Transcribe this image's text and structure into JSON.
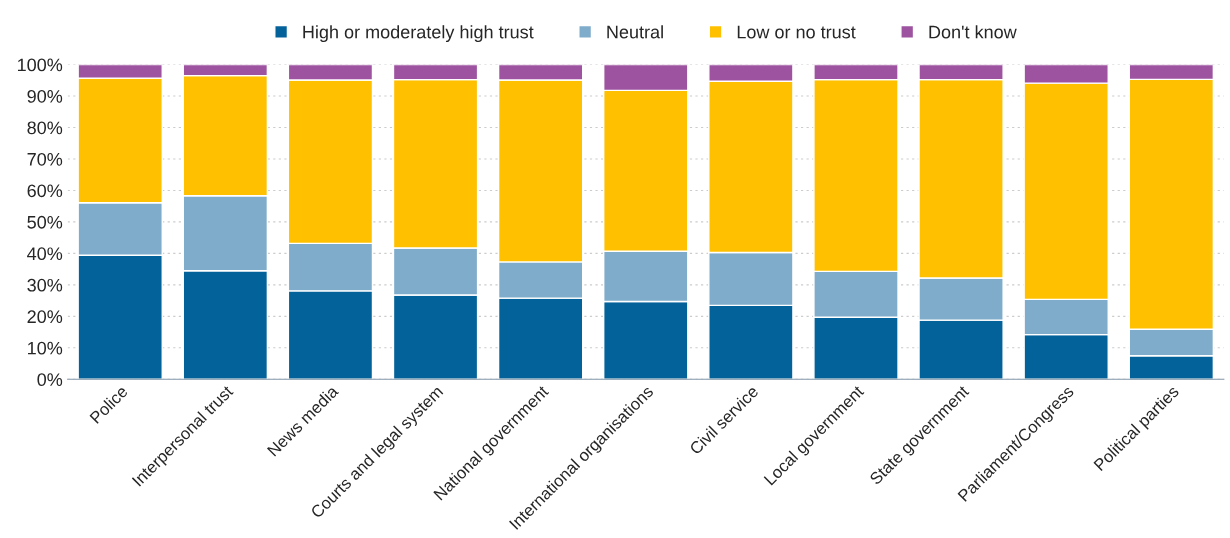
{
  "chart_data": {
    "type": "bar",
    "stacked": true,
    "categories": [
      "Police",
      "Interpersonal trust",
      "News media",
      "Courts and legal system",
      "National government",
      "International organisations",
      "Civil service",
      "Local government",
      "State government",
      "Parliament/Congress",
      "Political parties"
    ],
    "series": [
      {
        "name": "High or moderately high trust",
        "color": "#04629b",
        "values": [
          39.4,
          34.5,
          28.1,
          26.8,
          25.8,
          24.7,
          23.5,
          19.7,
          18.8,
          14.2,
          7.5
        ]
      },
      {
        "name": "Neutral",
        "color": "#7facca",
        "values": [
          16.7,
          23.8,
          15.1,
          14.9,
          11.5,
          16.0,
          16.8,
          14.6,
          13.4,
          11.2,
          8.4
        ]
      },
      {
        "name": "Low or no trust",
        "color": "#ffc000",
        "values": [
          39.6,
          38.2,
          51.9,
          53.5,
          57.8,
          51.1,
          54.4,
          60.9,
          63.0,
          68.7,
          79.4
        ]
      },
      {
        "name": "Don't know",
        "color": "#9e53a0",
        "values": [
          4.3,
          3.5,
          4.9,
          4.8,
          4.9,
          8.2,
          5.3,
          4.8,
          4.8,
          5.9,
          4.7
        ]
      }
    ],
    "ylim": [
      0,
      100
    ],
    "yticks": [
      {
        "value": 0,
        "label": "0%"
      },
      {
        "value": 10,
        "label": "10%"
      },
      {
        "value": 20,
        "label": "20%"
      },
      {
        "value": 30,
        "label": "30%"
      },
      {
        "value": 40,
        "label": "40%"
      },
      {
        "value": 50,
        "label": "50%"
      },
      {
        "value": 60,
        "label": "60%"
      },
      {
        "value": 70,
        "label": "70%"
      },
      {
        "value": 80,
        "label": "80%"
      },
      {
        "value": 90,
        "label": "90%"
      },
      {
        "value": 100,
        "label": "100%"
      }
    ],
    "grid": "y",
    "legend": "top"
  }
}
